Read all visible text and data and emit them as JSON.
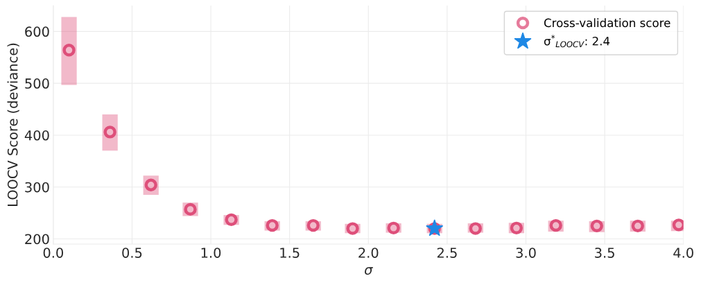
{
  "chart_data": {
    "type": "scatter",
    "xlabel": "σ",
    "ylabel": "LOOCV Score (deviance)",
    "xlim": [
      0,
      4
    ],
    "xticks": [
      {
        "value": 0,
        "label": "0.0"
      },
      0.5,
      {
        "value": 1,
        "label": "1.0"
      },
      1.5,
      {
        "value": 2,
        "label": "2.0"
      },
      2.5,
      {
        "value": 3,
        "label": "3.0"
      },
      3.5,
      {
        "value": 4,
        "label": "4.0"
      }
    ],
    "ylim": [
      190,
      650
    ],
    "yticks": [
      200,
      300,
      400,
      500,
      600
    ],
    "grid": true,
    "legend": "top right",
    "series": [
      {
        "name": "Cross-validation score",
        "marker": "circle",
        "color": "#de4f7a",
        "x": [
          0.1,
          0.36,
          0.62,
          0.87,
          1.13,
          1.39,
          1.65,
          1.9,
          2.16,
          2.42,
          2.68,
          2.94,
          3.19,
          3.45,
          3.71,
          3.97
        ],
        "values": [
          564,
          406,
          304,
          257,
          237,
          226,
          226,
          220,
          221,
          220,
          220,
          221,
          226,
          225,
          225,
          227
        ],
        "errors": [
          [
            497,
            628
          ],
          [
            370,
            440
          ],
          [
            285,
            322
          ],
          [
            244,
            270
          ],
          [
            227,
            246
          ],
          [
            216,
            234
          ],
          [
            216,
            234
          ],
          [
            211,
            229
          ],
          [
            212,
            230
          ],
          [
            211,
            229
          ],
          [
            212,
            230
          ],
          [
            211,
            231
          ],
          [
            214,
            235
          ],
          [
            213,
            234
          ],
          [
            214,
            235
          ],
          [
            215,
            235
          ]
        ]
      },
      {
        "name": "σ$^{*}$$_{LOOCV}$: 2.4",
        "marker": "star",
        "color": "#1e88e5",
        "x": [
          2.42
        ],
        "values": [
          220
        ]
      }
    ]
  }
}
